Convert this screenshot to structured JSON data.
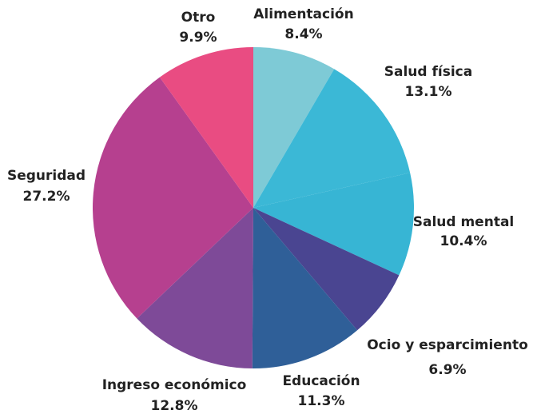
{
  "chart_data": {
    "type": "pie",
    "categories": [
      "Alimentación",
      "Salud física",
      "Salud mental",
      "Ocio y esparcimiento",
      "Educación",
      "Ingreso económico",
      "Seguridad",
      "Otro"
    ],
    "values": [
      8.4,
      13.1,
      10.4,
      6.9,
      11.3,
      12.8,
      27.2,
      9.9
    ],
    "value_labels": [
      "8.4%",
      "13.1%",
      "10.4%",
      "6.9%",
      "11.3%",
      "12.8%",
      "27.2%",
      "9.9%"
    ],
    "colors": [
      "#7ecad6",
      "#3bb8d6",
      "#37b5d4",
      "#4a4591",
      "#2f5f98",
      "#7e4a98",
      "#b6408f",
      "#e94c82"
    ]
  }
}
